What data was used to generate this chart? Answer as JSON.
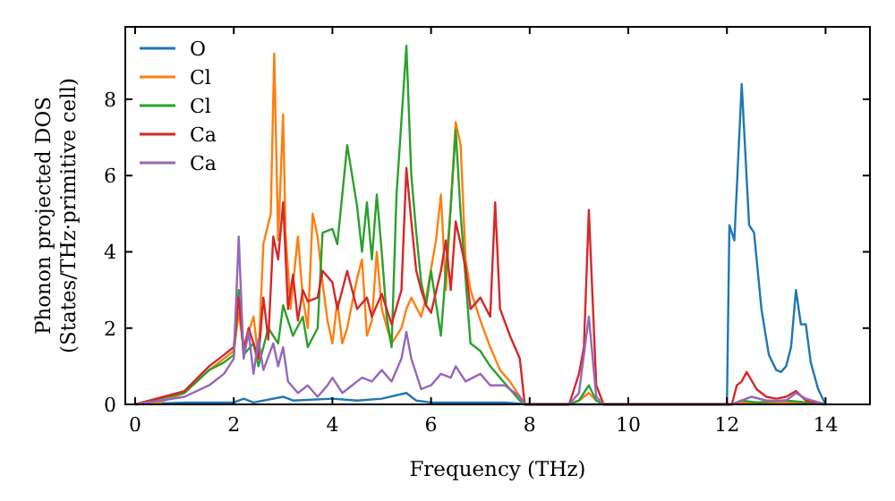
{
  "chart_data": {
    "type": "line",
    "xlabel": "Frequency (THz)",
    "ylabel": "Phonon projected DOS\n(States/THz·primitive cell)",
    "xlim": [
      -0.2,
      14.9
    ],
    "ylim": [
      0,
      9.9
    ],
    "xticks": [
      0,
      2,
      4,
      6,
      8,
      10,
      12,
      14
    ],
    "yticks": [
      0,
      2,
      4,
      6,
      8
    ],
    "grid": false,
    "legend": "top left",
    "line_style": "solid",
    "series": [
      {
        "name": "O",
        "color": "#1f77b4",
        "x": [
          0,
          1,
          2,
          2.2,
          2.4,
          3.0,
          3.2,
          4,
          4.5,
          5.0,
          5.5,
          5.7,
          6,
          7,
          7.5,
          8,
          12.0,
          12.05,
          12.15,
          12.3,
          12.45,
          12.55,
          12.7,
          12.85,
          13.0,
          13.1,
          13.2,
          13.3,
          13.4,
          13.5,
          13.6,
          13.7,
          13.85,
          14.0
        ],
        "values": [
          0,
          0.05,
          0.05,
          0.15,
          0.05,
          0.2,
          0.1,
          0.15,
          0.1,
          0.15,
          0.3,
          0.1,
          0.05,
          0.05,
          0.05,
          0,
          0,
          4.7,
          4.3,
          8.4,
          4.7,
          4.5,
          2.5,
          1.3,
          0.9,
          0.85,
          1.0,
          1.5,
          3.0,
          2.1,
          2.1,
          1.1,
          0.4,
          0
        ]
      },
      {
        "name": "Cl",
        "color": "#ff7f0e",
        "x": [
          0,
          0.5,
          1,
          1.5,
          1.8,
          2.0,
          2.1,
          2.2,
          2.4,
          2.5,
          2.6,
          2.75,
          2.82,
          2.9,
          3.0,
          3.05,
          3.15,
          3.3,
          3.4,
          3.5,
          3.6,
          3.7,
          3.8,
          3.9,
          4.0,
          4.1,
          4.2,
          4.3,
          4.5,
          4.6,
          4.7,
          4.8,
          4.9,
          5.0,
          5.2,
          5.4,
          5.5,
          5.6,
          5.8,
          5.9,
          6.1,
          6.2,
          6.3,
          6.5,
          6.6,
          6.7,
          6.8,
          7.0,
          7.2,
          7.4,
          7.6,
          7.8,
          7.9,
          8.8,
          9.0,
          9.2,
          9.35,
          9.5,
          12.1,
          12.3,
          12.6,
          13.2,
          14
        ],
        "values": [
          0,
          0.05,
          0.3,
          0.9,
          1.2,
          1.4,
          2.4,
          1.5,
          2.3,
          1.2,
          4.2,
          5.0,
          9.2,
          4.3,
          7.6,
          4.5,
          2.5,
          4.4,
          2.8,
          2.0,
          5.0,
          4.4,
          3.2,
          2.2,
          1.6,
          2.7,
          1.6,
          2.0,
          3.3,
          3.8,
          1.8,
          2.2,
          4.0,
          2.5,
          1.6,
          2.0,
          2.5,
          2.8,
          2.3,
          2.8,
          4.3,
          5.5,
          3.0,
          7.4,
          6.8,
          3.8,
          3.0,
          2.2,
          1.5,
          0.9,
          0.6,
          0.2,
          0,
          0,
          0.1,
          0.3,
          0.1,
          0,
          0,
          0.05,
          0.05,
          0.05,
          0
        ]
      },
      {
        "name": "Cl",
        "color": "#2ca02c",
        "x": [
          0,
          1,
          1.5,
          1.8,
          2.0,
          2.1,
          2.2,
          2.4,
          2.5,
          2.7,
          2.9,
          3.0,
          3.2,
          3.4,
          3.5,
          3.7,
          3.8,
          4.0,
          4.1,
          4.3,
          4.5,
          4.6,
          4.7,
          4.8,
          4.9,
          5.0,
          5.1,
          5.2,
          5.3,
          5.5,
          5.6,
          5.7,
          5.8,
          5.9,
          6.0,
          6.2,
          6.4,
          6.5,
          6.6,
          6.8,
          7.0,
          7.2,
          7.4,
          7.6,
          7.8,
          7.9,
          8.8,
          9.0,
          9.2,
          9.35,
          9.5,
          12.1,
          12.3,
          12.6,
          13.2,
          14
        ],
        "values": [
          0,
          0.3,
          0.9,
          1.1,
          1.3,
          3.0,
          1.3,
          1.6,
          1.0,
          2.0,
          1.6,
          2.6,
          1.8,
          2.3,
          1.5,
          2.0,
          4.5,
          4.6,
          4.2,
          6.8,
          5.2,
          4.0,
          5.3,
          3.8,
          5.5,
          4.0,
          2.3,
          1.5,
          5.5,
          9.4,
          6.0,
          4.5,
          3.2,
          2.6,
          3.5,
          1.8,
          5.2,
          7.2,
          5.0,
          1.6,
          1.4,
          1.0,
          0.7,
          0.4,
          0.1,
          0,
          0,
          0.1,
          0.5,
          0.1,
          0,
          0,
          0.1,
          0.05,
          0.1,
          0
        ]
      },
      {
        "name": "Ca",
        "color": "#d62728",
        "x": [
          0,
          1,
          1.5,
          1.8,
          2.0,
          2.1,
          2.2,
          2.3,
          2.5,
          2.6,
          2.7,
          2.8,
          2.9,
          3.0,
          3.1,
          3.2,
          3.3,
          3.4,
          3.5,
          3.7,
          3.8,
          4.0,
          4.1,
          4.3,
          4.5,
          4.7,
          4.8,
          5.0,
          5.2,
          5.4,
          5.5,
          5.6,
          5.7,
          5.8,
          5.9,
          6.0,
          6.2,
          6.3,
          6.4,
          6.5,
          6.7,
          6.8,
          7.0,
          7.2,
          7.3,
          7.4,
          7.6,
          7.8,
          7.9,
          8.8,
          9.0,
          9.1,
          9.2,
          9.35,
          9.5,
          12.1,
          12.2,
          12.3,
          12.4,
          12.6,
          12.8,
          13.0,
          13.2,
          13.4,
          13.6,
          14
        ],
        "values": [
          0,
          0.35,
          1.0,
          1.3,
          1.5,
          2.8,
          1.4,
          2.0,
          1.2,
          2.8,
          1.7,
          4.4,
          3.8,
          5.3,
          2.5,
          3.4,
          2.2,
          3.0,
          2.7,
          2.8,
          3.5,
          3.2,
          2.5,
          3.5,
          2.5,
          2.8,
          2.3,
          2.9,
          2.1,
          3.0,
          6.2,
          4.8,
          3.5,
          3.0,
          2.6,
          2.4,
          3.5,
          4.3,
          3.0,
          4.8,
          3.6,
          2.5,
          2.8,
          2.3,
          5.3,
          2.5,
          1.8,
          1.2,
          0,
          0,
          0.8,
          1.5,
          5.1,
          0.5,
          0,
          0,
          0.5,
          0.6,
          0.85,
          0.4,
          0.2,
          0.15,
          0.2,
          0.35,
          0.1,
          0
        ]
      },
      {
        "name": "Ca",
        "color": "#9467bd",
        "x": [
          0,
          1,
          1.5,
          1.8,
          2.0,
          2.1,
          2.2,
          2.3,
          2.4,
          2.5,
          2.6,
          2.8,
          2.9,
          3.0,
          3.1,
          3.3,
          3.5,
          3.7,
          3.9,
          4.0,
          4.2,
          4.4,
          4.6,
          4.8,
          5.0,
          5.2,
          5.4,
          5.5,
          5.6,
          5.8,
          6.0,
          6.2,
          6.4,
          6.5,
          6.7,
          7.0,
          7.2,
          7.5,
          7.8,
          7.9,
          8.8,
          9.0,
          9.2,
          9.35,
          9.5,
          12.1,
          12.3,
          12.5,
          12.8,
          13.2,
          13.4,
          13.6,
          14
        ],
        "values": [
          0,
          0.2,
          0.5,
          0.8,
          1.2,
          4.4,
          1.2,
          1.9,
          0.8,
          1.7,
          0.9,
          1.6,
          1.0,
          1.5,
          0.6,
          0.3,
          0.5,
          0.2,
          0.5,
          0.7,
          0.3,
          0.5,
          0.7,
          0.6,
          0.9,
          0.6,
          1.2,
          1.9,
          1.2,
          0.4,
          0.5,
          0.8,
          0.7,
          1.0,
          0.6,
          0.8,
          0.5,
          0.5,
          0.2,
          0,
          0,
          0.3,
          2.3,
          0.2,
          0,
          0,
          0.1,
          0.2,
          0.1,
          0.1,
          0.3,
          0.15,
          0
        ]
      }
    ]
  }
}
